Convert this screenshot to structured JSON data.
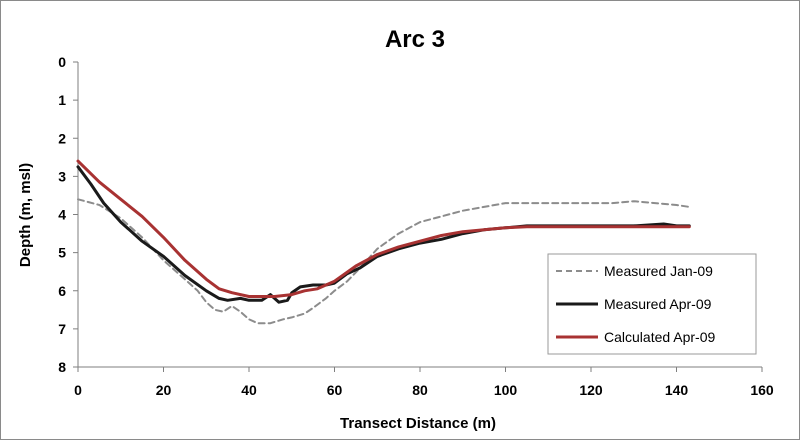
{
  "chart_data": {
    "type": "line",
    "title": "Arc 3",
    "xlabel": "Transect Distance (m)",
    "ylabel": "Depth (m, msl)",
    "xlim": [
      0,
      160
    ],
    "ylim": [
      0,
      8
    ],
    "y_inverted": true,
    "xticks": [
      "0",
      "20",
      "40",
      "60",
      "80",
      "100",
      "120",
      "140",
      "160"
    ],
    "yticks": [
      "0",
      "1",
      "2",
      "3",
      "4",
      "5",
      "6",
      "7",
      "8"
    ],
    "grid": false,
    "legend_position": "bottom-right",
    "series": [
      {
        "name": "Measured Jan-09",
        "color": "#8c8c8c",
        "style": "dashed",
        "x": [
          0,
          5,
          10,
          15,
          20,
          25,
          28,
          30,
          32,
          34,
          36,
          38,
          40,
          42,
          45,
          48,
          50,
          53,
          55,
          58,
          60,
          63,
          66,
          70,
          75,
          80,
          85,
          90,
          95,
          100,
          105,
          110,
          115,
          120,
          125,
          130,
          135,
          140,
          143
        ],
        "y": [
          3.6,
          3.75,
          4.1,
          4.6,
          5.2,
          5.7,
          6.0,
          6.3,
          6.5,
          6.55,
          6.4,
          6.55,
          6.75,
          6.85,
          6.85,
          6.75,
          6.7,
          6.6,
          6.45,
          6.2,
          6.0,
          5.75,
          5.4,
          4.9,
          4.5,
          4.2,
          4.05,
          3.9,
          3.8,
          3.7,
          3.7,
          3.7,
          3.7,
          3.7,
          3.7,
          3.65,
          3.7,
          3.75,
          3.8
        ]
      },
      {
        "name": "Measured Apr-09",
        "color": "#1a1a1a",
        "style": "solid",
        "x": [
          0,
          3,
          6,
          10,
          15,
          20,
          25,
          30,
          33,
          35,
          38,
          40,
          43,
          45,
          47,
          49,
          50,
          52,
          55,
          58,
          60,
          63,
          66,
          70,
          75,
          80,
          85,
          90,
          95,
          100,
          105,
          110,
          120,
          130,
          137,
          140,
          143
        ],
        "y": [
          2.75,
          3.2,
          3.7,
          4.2,
          4.7,
          5.1,
          5.6,
          6.0,
          6.2,
          6.25,
          6.2,
          6.25,
          6.25,
          6.1,
          6.3,
          6.25,
          6.05,
          5.9,
          5.85,
          5.85,
          5.8,
          5.55,
          5.4,
          5.1,
          4.9,
          4.75,
          4.65,
          4.5,
          4.4,
          4.35,
          4.3,
          4.3,
          4.3,
          4.3,
          4.25,
          4.3,
          4.3
        ]
      },
      {
        "name": "Calculated Apr-09",
        "color": "#a83232",
        "style": "solid",
        "x": [
          0,
          5,
          10,
          15,
          20,
          25,
          30,
          33,
          36,
          40,
          43,
          46,
          50,
          53,
          56,
          60,
          65,
          70,
          75,
          80,
          85,
          90,
          95,
          100,
          105,
          110,
          120,
          130,
          140,
          143
        ],
        "y": [
          2.6,
          3.15,
          3.6,
          4.05,
          4.6,
          5.2,
          5.7,
          5.95,
          6.05,
          6.15,
          6.15,
          6.15,
          6.1,
          6.0,
          5.95,
          5.75,
          5.35,
          5.05,
          4.85,
          4.7,
          4.55,
          4.45,
          4.4,
          4.35,
          4.32,
          4.32,
          4.32,
          4.32,
          4.32,
          4.32
        ]
      }
    ]
  }
}
